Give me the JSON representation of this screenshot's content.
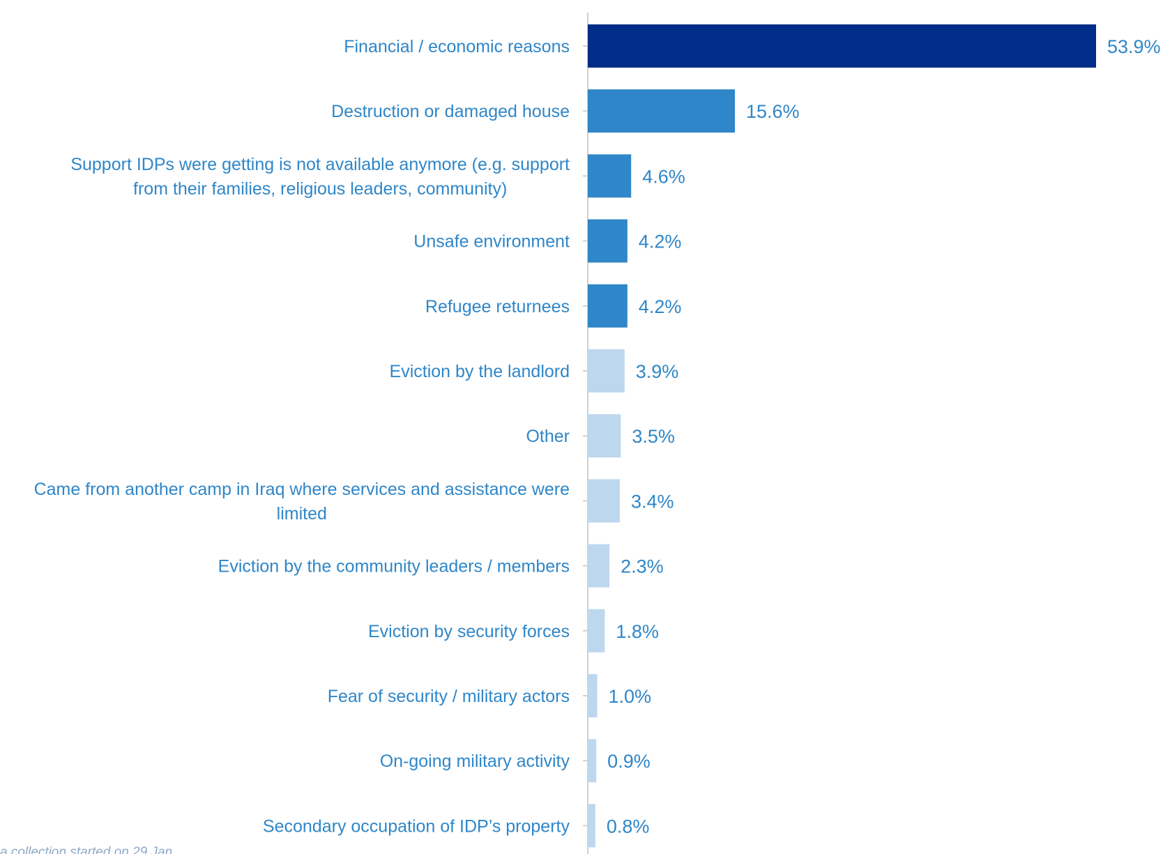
{
  "chart_data": {
    "type": "bar",
    "orientation": "horizontal",
    "categories": [
      "Financial / economic reasons",
      "Destruction or damaged house",
      "Support IDPs were getting is not available anymore (e.g. support from their families, religious leaders, community)",
      "Unsafe environment",
      "Refugee returnees",
      "Eviction by the landlord",
      "Other",
      "Came from another camp in Iraq where services and assistance were limited",
      "Eviction by the community leaders / members",
      "Eviction by security forces",
      "Fear of security / military actors",
      "On-going military activity",
      "Secondary occupation of IDP’s property"
    ],
    "category_lines": [
      [
        "Financial / economic reasons"
      ],
      [
        "Destruction or damaged house"
      ],
      [
        "Support IDPs were getting is not available anymore (e.g. support",
        "from their families, religious leaders, community)"
      ],
      [
        "Unsafe environment"
      ],
      [
        "Refugee returnees"
      ],
      [
        "Eviction by the landlord"
      ],
      [
        "Other"
      ],
      [
        "Came from another camp in Iraq where services and assistance were",
        "limited"
      ],
      [
        "Eviction by the community leaders / members"
      ],
      [
        "Eviction by security forces"
      ],
      [
        "Fear of security / military actors"
      ],
      [
        "On-going military activity"
      ],
      [
        "Secondary occupation of IDP’s property"
      ]
    ],
    "values": [
      53.9,
      15.6,
      4.6,
      4.2,
      4.2,
      3.9,
      3.5,
      3.4,
      2.3,
      1.8,
      1.0,
      0.9,
      0.8
    ],
    "value_labels": [
      "53.9%",
      "15.6%",
      "4.6%",
      "4.2%",
      "4.2%",
      "3.9%",
      "3.5%",
      "3.4%",
      "2.3%",
      "1.8%",
      "1.0%",
      "0.9%",
      "0.8%"
    ],
    "bar_colors": [
      "#002d87",
      "#2f86c8",
      "#2f86c8",
      "#2f86c8",
      "#2f86c8",
      "#bdd7ee",
      "#bdd7ee",
      "#bdd7ee",
      "#bdd7ee",
      "#bdd7ee",
      "#bdd7ee",
      "#bdd7ee",
      "#bdd7ee"
    ],
    "label_color": "#2f86c8",
    "xlim": [
      0,
      60
    ],
    "grid": false,
    "legend": "none"
  },
  "footnote": "a collection started on 29 Jan."
}
